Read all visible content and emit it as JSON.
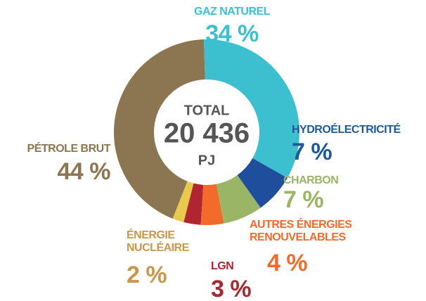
{
  "chart_data": {
    "type": "pie",
    "donut": true,
    "center_text": [
      "TOTAL",
      "20 436",
      "PJ"
    ],
    "categories": [
      "GAZ NATUREL",
      "HYDROÉLECTRICITÉ",
      "CHARBON",
      "AUTRES ÉNERGIES RENOUVELABLES",
      "LGN",
      "ÉNERGIE NUCLÉAIRE",
      "PÉTROLE BRUT"
    ],
    "values": [
      34,
      7,
      7,
      4,
      3,
      2,
      44
    ],
    "value_labels": [
      "34 %",
      "7 %",
      "7 %",
      "4 %",
      "3 %",
      "2 %",
      "44 %"
    ],
    "colors": [
      "#3cbfcf",
      "#1f4e9c",
      "#9bb566",
      "#f26b2a",
      "#b0252f",
      "#e8c94c",
      "#8b7651"
    ],
    "label_colors": [
      "#3cbfcf",
      "#1f5a96",
      "#9bb566",
      "#f26b2a",
      "#a8262e",
      "#c9974a",
      "#8b7651"
    ]
  }
}
